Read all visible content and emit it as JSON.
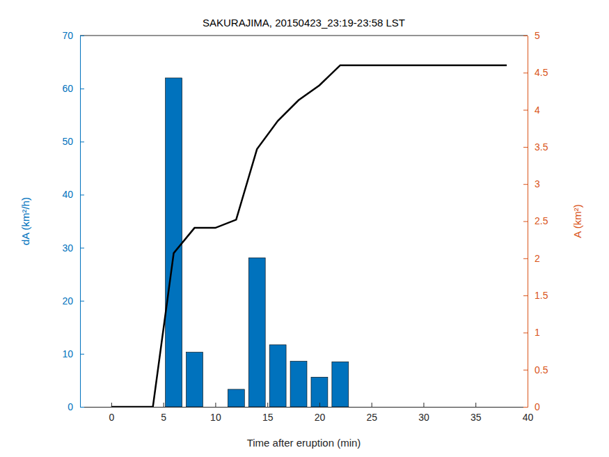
{
  "chart_data": {
    "type": "bar",
    "title": "SAKURAJIMA, 20150423_23:19-23:58 LST",
    "x_label": "Time after eruption (min)",
    "y_label": "dA (km²/h)",
    "y2_label": "A (km²)",
    "x": [
      0,
      2,
      4,
      6,
      8,
      10,
      12,
      14,
      16,
      18,
      20,
      22,
      24,
      26,
      28,
      30,
      32,
      34,
      36,
      38
    ],
    "xlim": [
      -3,
      40
    ],
    "xticks": [
      0,
      5,
      10,
      15,
      20,
      25,
      30,
      35,
      40
    ],
    "ylim": [
      0,
      70
    ],
    "yticks": [
      0,
      10,
      20,
      30,
      40,
      50,
      60,
      70
    ],
    "y2lim": [
      0,
      5
    ],
    "y2ticks": [
      0,
      0.5,
      1,
      1.5,
      2,
      2.5,
      3,
      3.5,
      4,
      4.5,
      5
    ],
    "series": [
      {
        "name": "dA",
        "type": "bar",
        "color": "#0072bd",
        "values": [
          null,
          null,
          null,
          62,
          10.3,
          0,
          3.3,
          28.1,
          11.7,
          8.6,
          5.6,
          8.5,
          null,
          null,
          null,
          null,
          null,
          null,
          null,
          null
        ]
      },
      {
        "name": "A",
        "type": "line",
        "axis": "y2",
        "color": "#000000",
        "line_style": "solid",
        "values": [
          0,
          0,
          0,
          2.07,
          2.41,
          2.41,
          2.52,
          3.47,
          3.85,
          4.13,
          4.33,
          4.6,
          4.6,
          4.6,
          4.6,
          4.6,
          4.6,
          4.6,
          4.6,
          4.6
        ]
      }
    ]
  }
}
